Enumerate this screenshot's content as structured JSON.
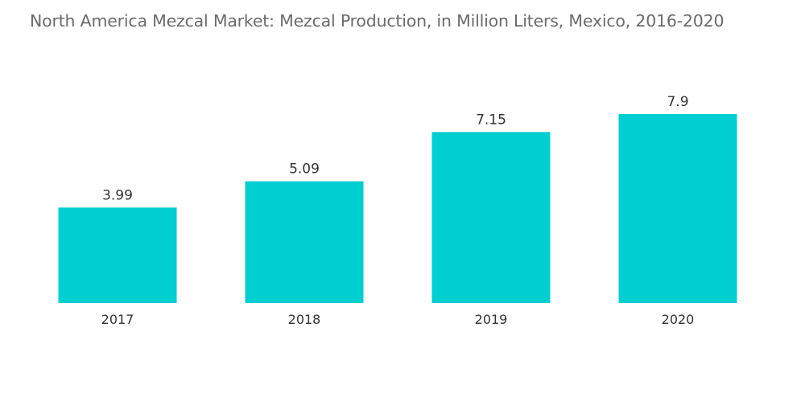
{
  "chart_data": {
    "type": "bar",
    "title": "North America Mezcal Market: Mezcal Production, in Million Liters, Mexico, 2016-2020",
    "categories": [
      "2017",
      "2018",
      "2019",
      "2020"
    ],
    "values": [
      3.99,
      5.09,
      7.15,
      7.9
    ],
    "data_labels": [
      "3.99",
      "5.09",
      "7.15",
      "7.9"
    ],
    "xlabel": "",
    "ylabel": "",
    "ylim": [
      0,
      7.9
    ],
    "grid": false,
    "legend": "none",
    "bar_color": "#00CED1"
  }
}
